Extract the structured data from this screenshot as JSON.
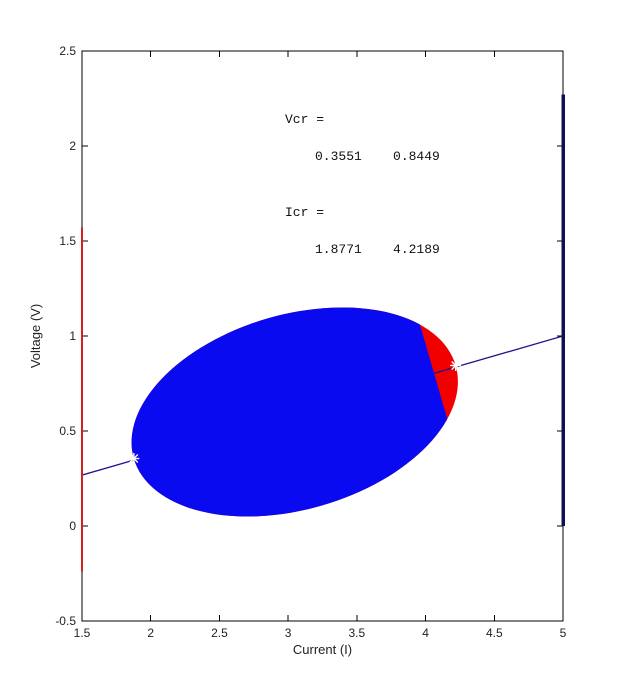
{
  "annotations": {
    "vcr_label": "Vcr =",
    "vcr_values": "0.3551    0.8449",
    "icr_label": "Icr =",
    "icr_values": "1.8771    4.2189"
  },
  "chart_data": {
    "type": "area",
    "title": "",
    "xlabel": "Current (I)",
    "ylabel": "Voltage (V)",
    "xlim": [
      1.5,
      5
    ],
    "ylim": [
      -0.5,
      2.5
    ],
    "x_ticks": [
      1.5,
      2,
      2.5,
      3,
      3.5,
      4,
      4.5,
      5
    ],
    "x_tick_labels": [
      "1.5",
      "2",
      "2.5",
      "3",
      "3.5",
      "4",
      "4.5",
      "5"
    ],
    "y_ticks": [
      -0.5,
      0,
      0.5,
      1,
      1.5,
      2,
      2.5
    ],
    "y_tick_labels": [
      "-0.5",
      "0",
      "0.5",
      "1",
      "1.5",
      "2",
      "2.5"
    ],
    "grid": false,
    "legend": null,
    "critical_points": {
      "Vcr": [
        0.3551,
        0.8449
      ],
      "Icr": [
        1.8771,
        4.2189
      ]
    },
    "load_line": {
      "x": [
        1.5,
        5
      ],
      "y": [
        0.268,
        1.0
      ],
      "color": "#2d0e8f",
      "width": 1.3
    },
    "envelope_region": {
      "shape": "rotated-ellipse",
      "center": [
        3.048,
        0.6
      ],
      "tip_left": [
        1.8771,
        0.3551
      ],
      "tip_right": [
        4.2189,
        0.8449
      ],
      "v_top": 1.15,
      "v_bottom": 0.04,
      "red_split_I": 4.1,
      "blue_color": "#0a0af0",
      "red_color": "#f20000"
    },
    "edge_lines": [
      {
        "x": 1.5,
        "v_from": -0.24,
        "v_to": 1.57,
        "color": "#d42020",
        "width": 2
      },
      {
        "x": 5.0,
        "v_from": 0.0,
        "v_to": 2.27,
        "color": "#101050",
        "width": 3.5
      }
    ],
    "markers": [
      {
        "x": 1.8771,
        "y": 0.3551,
        "style": "asterisk",
        "color": "#fffff4"
      },
      {
        "x": 4.2189,
        "y": 0.8449,
        "style": "asterisk",
        "color": "#fffff4"
      }
    ],
    "axis_color": "#000000",
    "tick_length": 6
  }
}
